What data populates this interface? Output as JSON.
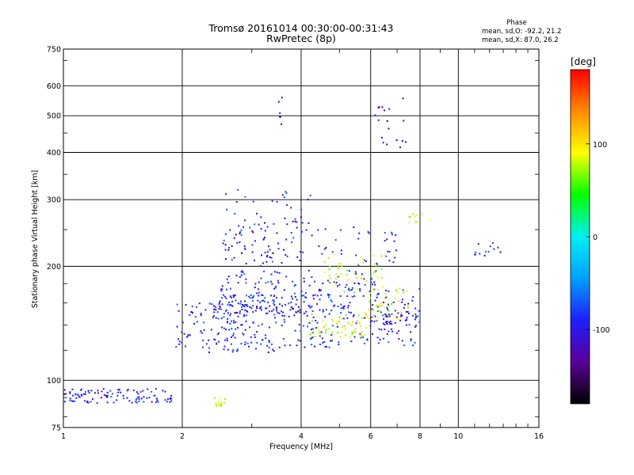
{
  "chart_data": {
    "type": "scatter",
    "title": "Tromsø 20161014 00:30:00-00:31:43",
    "subtitle": "RwPretec (8p)",
    "xlabel": "Frequency [MHz]",
    "ylabel": "Stationary phase Virtual Height [km]",
    "x_scale": "log",
    "y_scale": "log",
    "xlim": [
      1,
      16
    ],
    "ylim": [
      75,
      750
    ],
    "x_ticks": [
      1,
      2,
      4,
      6,
      8,
      10,
      16
    ],
    "y_ticks": [
      75,
      100,
      200,
      300,
      400,
      500,
      600,
      750
    ],
    "grid": true,
    "phase_box": {
      "title": "Phase",
      "line_o": "mean, sd,O: -92.2, 21.2",
      "line_x": "mean, sd,X:  87.0, 26.2"
    },
    "colorbar": {
      "label": "[deg]",
      "min": -180,
      "max": 180,
      "ticks": [
        -100,
        0,
        100
      ],
      "colors": [
        "#000000",
        "#5a0096",
        "#1e1eff",
        "#00a0ff",
        "#00f0f0",
        "#00ff00",
        "#ffff00",
        "#ff8c00",
        "#ff0000"
      ]
    },
    "series": [
      {
        "name": "O",
        "phase_deg": -92.2,
        "segments": [
          {
            "f": [
              1.0,
              1.9
            ],
            "h": [
              87,
              95
            ],
            "n": 110
          },
          {
            "f": [
              1.9,
              3.6
            ],
            "h": [
              118,
              160
            ],
            "n": 170
          },
          {
            "f": [
              2.4,
              5.4
            ],
            "h": [
              150,
              168
            ],
            "n": 130
          },
          {
            "f": [
              2.5,
              6.2
            ],
            "h": [
              165,
              195
            ],
            "n": 110
          },
          {
            "f": [
              3.6,
              8.0
            ],
            "h": [
              122,
              150
            ],
            "n": 110
          },
          {
            "f": [
              2.5,
              7.0
            ],
            "h": [
              200,
              255
            ],
            "n": 80
          },
          {
            "f": [
              2.5,
              4.5
            ],
            "h": [
              240,
              320
            ],
            "n": 35
          },
          {
            "f": [
              6.0,
              8.0
            ],
            "h": [
              140,
              175
            ],
            "n": 60
          },
          {
            "f": [
              11.0,
              13.0
            ],
            "h": [
              210,
              232
            ],
            "n": 14
          }
        ]
      },
      {
        "name": "X",
        "phase_deg": 87.0,
        "segments": [
          {
            "f": [
              4.2,
              6.0
            ],
            "h": [
              130,
              150
            ],
            "n": 55
          },
          {
            "f": [
              4.5,
              6.5
            ],
            "h": [
              170,
              215
            ],
            "n": 45
          },
          {
            "f": [
              5.5,
              7.5
            ],
            "h": [
              145,
              175
            ],
            "n": 40
          },
          {
            "f": [
              2.4,
              2.6
            ],
            "h": [
              85,
              90
            ],
            "n": 15
          },
          {
            "f": [
              7.5,
              8.5
            ],
            "h": [
              260,
              275
            ],
            "n": 10
          }
        ]
      },
      {
        "name": "",
        "phase_deg": -135,
        "segments": [
          {
            "f": [
              2.5,
              4.0
            ],
            "h": [
              200,
              280
            ],
            "n": 30
          },
          {
            "f": [
              6.0,
              7.5
            ],
            "h": [
              400,
              560
            ],
            "n": 18
          },
          {
            "f": [
              3.5,
              3.6
            ],
            "h": [
              440,
              620
            ],
            "n": 6
          }
        ]
      }
    ]
  }
}
